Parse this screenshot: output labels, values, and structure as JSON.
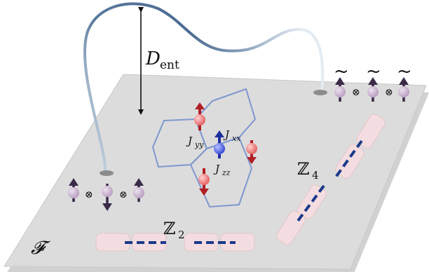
{
  "labels": {
    "d_ent_main": "D",
    "d_ent_sub": "ent",
    "jxx_main": "J",
    "jxx_sub": "xx",
    "jyy_main": "J",
    "jyy_sub": "yy",
    "jzz_main": "J",
    "jzz_sub": "zz",
    "z2_letter": "ℤ",
    "z2_sub": "2",
    "z4_letter": "ℤ",
    "z4_sub": "4",
    "f_label": "𝓕",
    "tensor_symbol": "⊗",
    "tilde_symbol": "~"
  },
  "colors": {
    "plane": "#dcdcdc",
    "plane_edge": "#a9a9a9",
    "lattice": "#7f97cf",
    "spin_red": "#e25b5b",
    "arrow_red": "#b01f24",
    "spin_blue": "#3a4fe0",
    "arrow_blue": "#1f2ea0",
    "spin_purple": "#bfa7c6",
    "arrow_dark": "#3b2a48",
    "bond_dashed": "#1a3a8a",
    "block_pink": "#f4dde0",
    "curve_dark": "#4f6f94",
    "curve_light": "#d6e1ec"
  }
}
